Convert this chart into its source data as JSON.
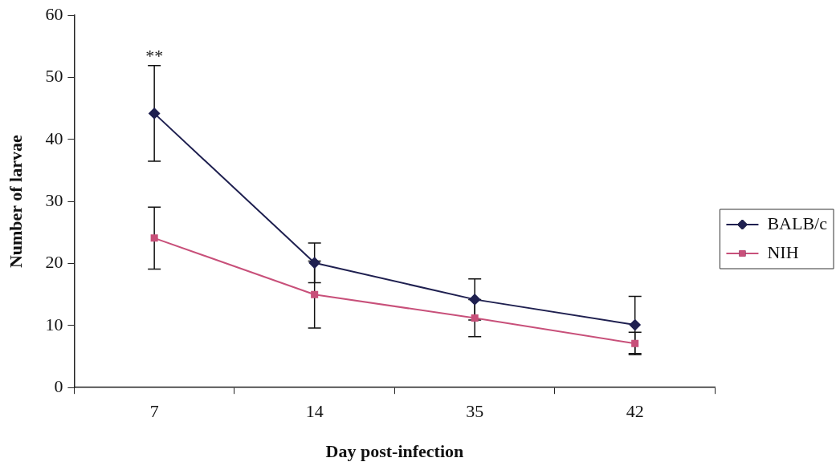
{
  "chart_data": {
    "type": "line",
    "xlabel": "Day post-infection",
    "ylabel": "Number of larvae",
    "categories": [
      "7",
      "14",
      "35",
      "42"
    ],
    "series": [
      {
        "name": "BALB/c",
        "color": "#1f2050",
        "marker": "diamond",
        "values": [
          44.2,
          20.1,
          14.2,
          10.1
        ],
        "errors": [
          7.7,
          3.2,
          3.3,
          4.6
        ]
      },
      {
        "name": "NIH",
        "color": "#c8507a",
        "marker": "square",
        "values": [
          24.1,
          15.0,
          11.2,
          7.1
        ],
        "errors": [
          5.0,
          5.4,
          3.0,
          1.8
        ]
      }
    ],
    "ylim": [
      0,
      60
    ],
    "yticks": [
      0,
      10,
      20,
      30,
      40,
      50,
      60
    ],
    "annotations": [
      "**"
    ],
    "legend": "right"
  }
}
